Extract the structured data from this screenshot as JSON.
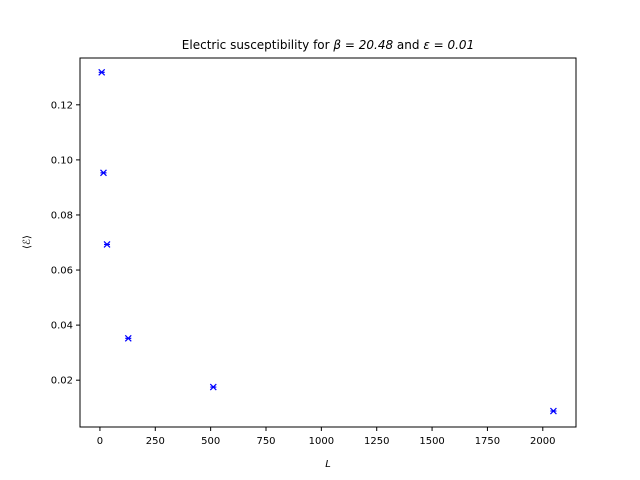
{
  "chart_data": {
    "type": "scatter",
    "title_prefix": "Electric susceptibility for ",
    "title_beta": "β = 20.48",
    "title_and": " and ",
    "title_eps": "ε = 0.01",
    "xlabel": "L",
    "ylabel": "⟨ℰ⟩",
    "xlim": [
      -90,
      2150
    ],
    "ylim": [
      0.003,
      0.137
    ],
    "xticks": [
      0,
      250,
      500,
      750,
      1000,
      1250,
      1500,
      1750,
      2000
    ],
    "xtick_labels": [
      "0",
      "250",
      "500",
      "750",
      "1000",
      "1250",
      "1500",
      "1750",
      "2000"
    ],
    "yticks": [
      0.02,
      0.04,
      0.06,
      0.08,
      0.1,
      0.12
    ],
    "ytick_labels": [
      "0.02",
      "0.04",
      "0.06",
      "0.08",
      "0.10",
      "0.12"
    ],
    "grid": false,
    "marker": "x",
    "marker_color": "#0000ff",
    "series": [
      {
        "x": [
          8,
          16,
          32,
          128,
          512,
          2048
        ],
        "y": [
          0.1318,
          0.0953,
          0.0693,
          0.0352,
          0.0175,
          0.0088
        ]
      }
    ]
  }
}
